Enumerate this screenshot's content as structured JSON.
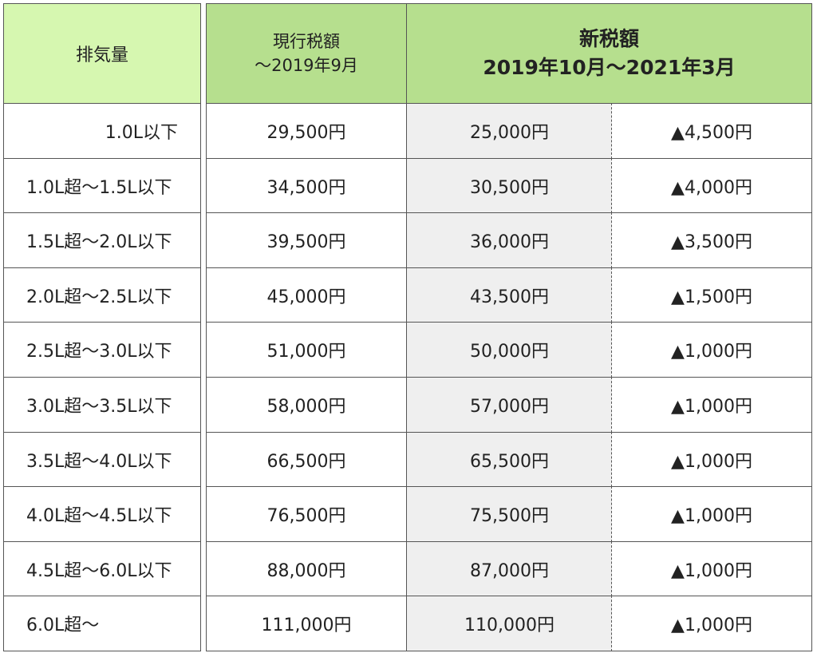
{
  "headers": {
    "displacement": "排気量",
    "current_line1": "現行税額",
    "current_line2": "〜2019年9月",
    "new_line1": "新税額",
    "new_line2": "2019年10月〜2021年3月"
  },
  "rows": [
    {
      "label": "1.0L以下",
      "current": "29,500円",
      "new": "25,000円",
      "diff": "▲4,500円"
    },
    {
      "label": "1.0L超〜1.5L以下",
      "current": "34,500円",
      "new": "30,500円",
      "diff": "▲4,000円"
    },
    {
      "label": "1.5L超〜2.0L以下",
      "current": "39,500円",
      "new": "36,000円",
      "diff": "▲3,500円"
    },
    {
      "label": "2.0L超〜2.5L以下",
      "current": "45,000円",
      "new": "43,500円",
      "diff": "▲1,500円"
    },
    {
      "label": "2.5L超〜3.0L以下",
      "current": "51,000円",
      "new": "50,000円",
      "diff": "▲1,000円"
    },
    {
      "label": "3.0L超〜3.5L以下",
      "current": "58,000円",
      "new": "57,000円",
      "diff": "▲1,000円"
    },
    {
      "label": "3.5L超〜4.0L以下",
      "current": "66,500円",
      "new": "65,500円",
      "diff": "▲1,000円"
    },
    {
      "label": "4.0L超〜4.5L以下",
      "current": "76,500円",
      "new": "75,500円",
      "diff": "▲1,000円"
    },
    {
      "label": "4.5L超〜6.0L以下",
      "current": "88,000円",
      "new": "87,000円",
      "diff": "▲1,000円"
    },
    {
      "label": "6.0L超〜",
      "current": "111,000円",
      "new": "110,000円",
      "diff": "▲1,000円"
    }
  ],
  "colors": {
    "header_light_green": "#d6f7b0",
    "header_green": "#b6df8e",
    "new_column_bg": "#efefef",
    "border": "#555555"
  }
}
